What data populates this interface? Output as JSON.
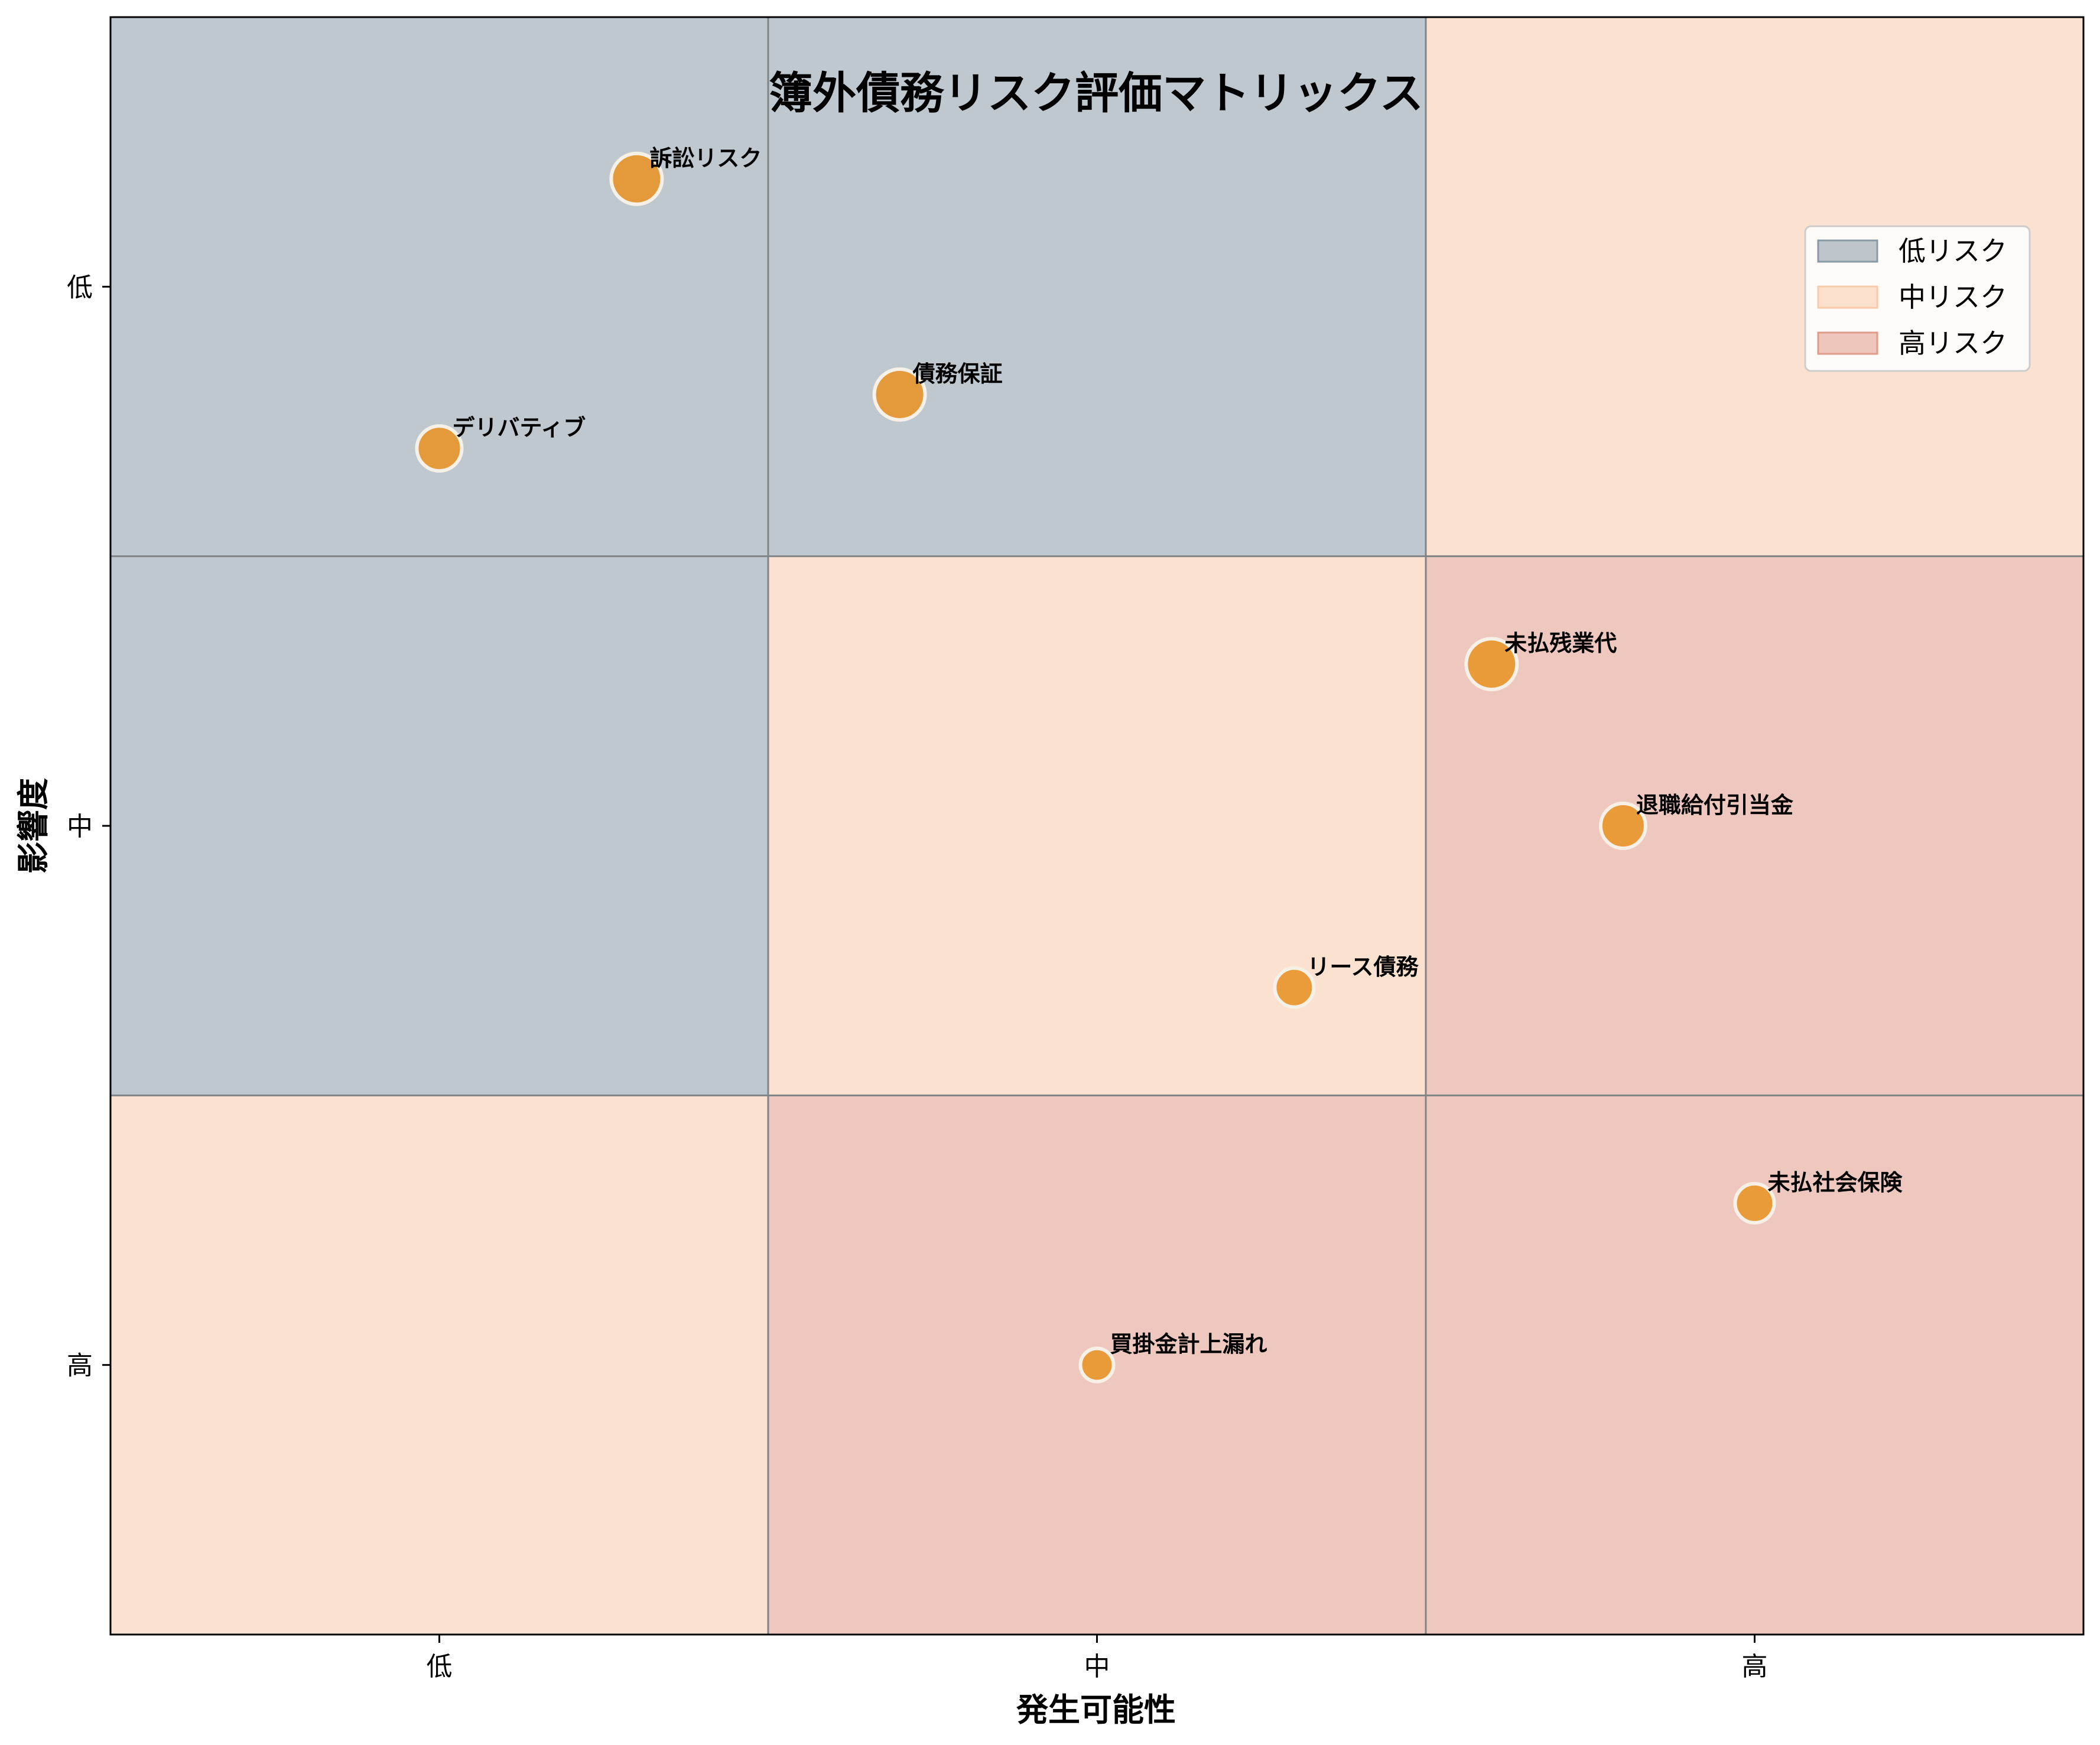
{
  "chart_data": {
    "type": "scatter",
    "title": "簿外債務リスク評価マトリックス",
    "xlabel": "発生可能性",
    "ylabel": "影響度",
    "x_ticks": [
      "低",
      "中",
      "高"
    ],
    "y_ticks": [
      "低",
      "中",
      "高"
    ],
    "xlim": [
      0.5,
      3.5
    ],
    "ylim": [
      3.5,
      0.5
    ],
    "grid": false,
    "legend_position": "upper right",
    "legend": [
      {
        "name": "低リスク",
        "color": "#8a9aa5"
      },
      {
        "name": "中リスク",
        "color": "#f7cba9"
      },
      {
        "name": "高リスク",
        "color": "#e09a88"
      }
    ],
    "zones": [
      {
        "x": 1,
        "y": 1,
        "level": "低リスク"
      },
      {
        "x": 2,
        "y": 1,
        "level": "低リスク"
      },
      {
        "x": 3,
        "y": 1,
        "level": "中リスク"
      },
      {
        "x": 1,
        "y": 2,
        "level": "低リスク"
      },
      {
        "x": 2,
        "y": 2,
        "level": "中リスク"
      },
      {
        "x": 3,
        "y": 2,
        "level": "高リスク"
      },
      {
        "x": 1,
        "y": 3,
        "level": "中リスク"
      },
      {
        "x": 2,
        "y": 3,
        "level": "高リスク"
      },
      {
        "x": 3,
        "y": 3,
        "level": "高リスク"
      }
    ],
    "points": [
      {
        "label": "訴訟リスク",
        "x": 1.3,
        "y": 0.8,
        "size": 5
      },
      {
        "label": "デリバティブ",
        "x": 1.0,
        "y": 1.3,
        "size": 4
      },
      {
        "label": "債務保証",
        "x": 1.7,
        "y": 1.2,
        "size": 5
      },
      {
        "label": "未払残業代",
        "x": 2.6,
        "y": 1.7,
        "size": 5
      },
      {
        "label": "退職給付引当金",
        "x": 2.8,
        "y": 2.0,
        "size": 4
      },
      {
        "label": "リース債務",
        "x": 2.3,
        "y": 2.3,
        "size": 3
      },
      {
        "label": "未払社会保険",
        "x": 3.0,
        "y": 2.7,
        "size": 3
      },
      {
        "label": "買掛金計上漏れ",
        "x": 2.0,
        "y": 3.0,
        "size": 2
      }
    ],
    "point_color": "#e8952a"
  }
}
